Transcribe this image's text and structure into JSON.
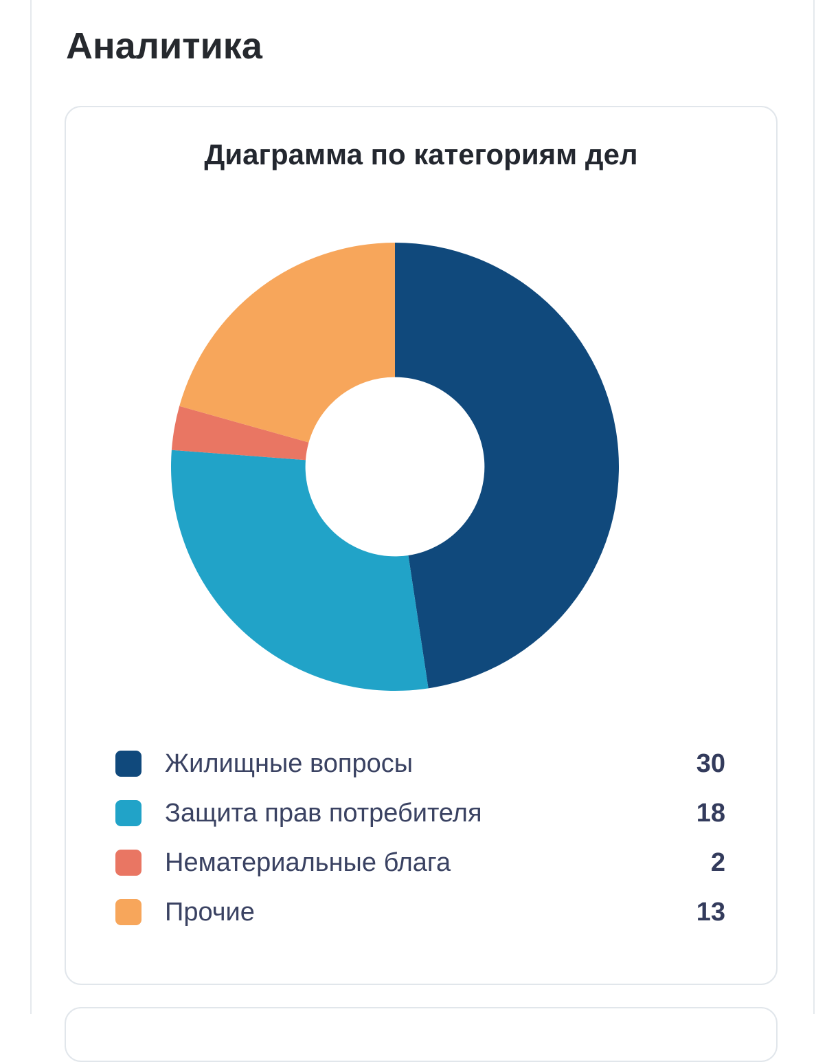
{
  "page": {
    "heading": "Аналитика"
  },
  "chart_data": {
    "type": "pie",
    "variant": "donut",
    "title": "Диаграмма по категориям дел",
    "categories": [
      "Жилищные вопросы",
      "Защита прав потребителя",
      "Нематериальные блага",
      "Прочие"
    ],
    "values": [
      30,
      18,
      2,
      13
    ],
    "colors": [
      "#10497c",
      "#21a3c8",
      "#e97663",
      "#f7a65b"
    ],
    "donut_hole_ratio": 0.4,
    "start_angle_deg": 0,
    "direction": "clockwise",
    "legend_position": "bottom"
  }
}
